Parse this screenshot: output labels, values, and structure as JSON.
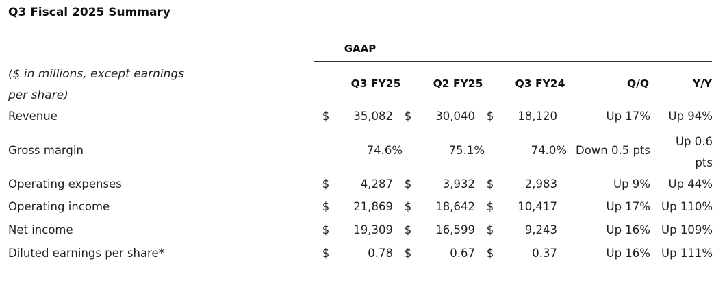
{
  "title": "Q3 Fiscal 2025 Summary",
  "group_label": "GAAP",
  "units_note": "($ in millions, except earnings per share)",
  "columns": [
    "Q3 FY25",
    "Q2 FY25",
    "Q3 FY24",
    "Q/Q",
    "Y/Y"
  ],
  "rows": [
    {
      "label": "Revenue",
      "d1": "$",
      "v1": "35,082",
      "d2": "$",
      "v2": "30,040",
      "d3": "$",
      "v3": "18,120",
      "qq": "Up 17%",
      "yy": "Up 94%"
    },
    {
      "label": "Gross margin",
      "d1": "",
      "v1": "74.6%",
      "d2": "",
      "v2": "75.1%",
      "d3": "",
      "v3": "74.0%",
      "qq": "Down 0.5 pts",
      "yy": "Up 0.6 pts"
    },
    {
      "label": "Operating expenses",
      "d1": "$",
      "v1": "4,287",
      "d2": "$",
      "v2": "3,932",
      "d3": "$",
      "v3": "2,983",
      "qq": "Up 9%",
      "yy": "Up 44%"
    },
    {
      "label": "Operating income",
      "d1": "$",
      "v1": "21,869",
      "d2": "$",
      "v2": "18,642",
      "d3": "$",
      "v3": "10,417",
      "qq": "Up 17%",
      "yy": "Up 110%"
    },
    {
      "label": "Net income",
      "d1": "$",
      "v1": "19,309",
      "d2": "$",
      "v2": "16,599",
      "d3": "$",
      "v3": "9,243",
      "qq": "Up 16%",
      "yy": "Up 109%"
    },
    {
      "label": "Diluted earnings per share*",
      "d1": "$",
      "v1": "0.78",
      "d2": "$",
      "v2": "0.67",
      "d3": "$",
      "v3": "0.37",
      "qq": "Up 16%",
      "yy": "Up 111%"
    }
  ]
}
